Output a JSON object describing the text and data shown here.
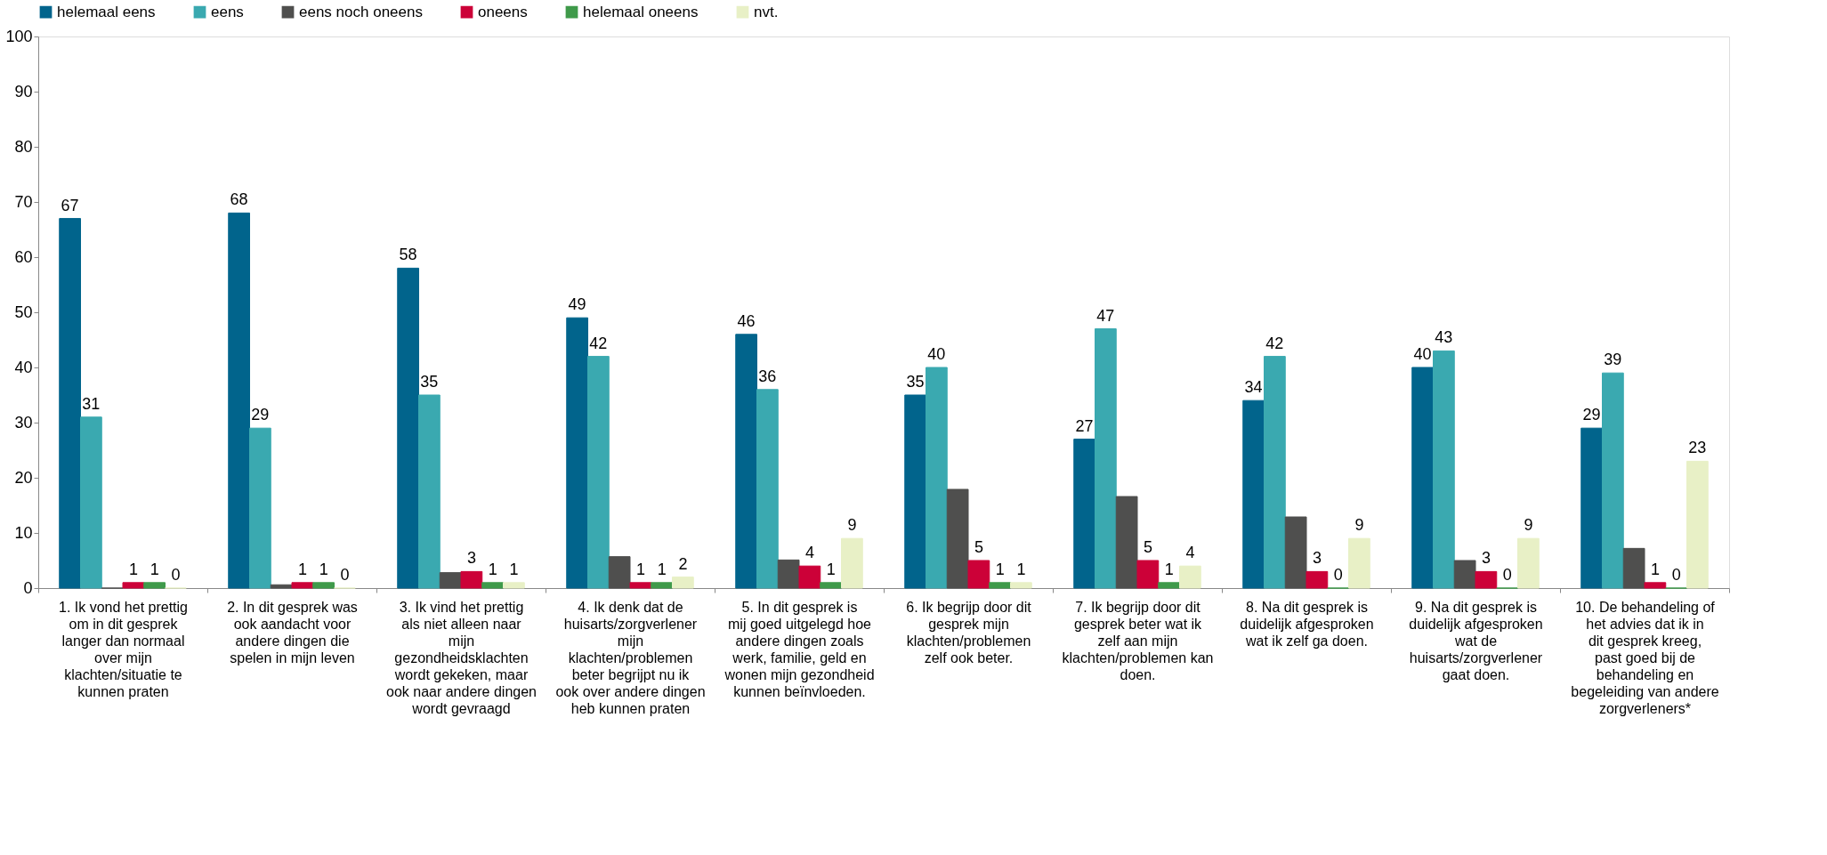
{
  "chart_data": {
    "type": "bar",
    "categories": [
      "1. Ik vond het prettig om in dit gesprek langer dan normaal over mijn klachten/situatie te kunnen praten",
      "2. In dit gesprek was ook aandacht voor andere dingen die spelen in mijn leven",
      "3. Ik vind het prettig als niet alleen naar mijn gezondheidsklachten wordt gekeken, maar ook naar andere dingen wordt gevraagd",
      "4. Ik denk dat de huisarts/zorgverlener mijn klachten/problemen beter begrijpt nu ik ook over andere dingen heb kunnen praten",
      "5. In dit gesprek is mij goed uitgelegd hoe andere dingen zoals werk, familie, geld en wonen mijn gezondheid kunnen beïnvloeden.",
      "6. Ik begrijp door dit gesprek mijn klachten/problemen zelf ook beter.",
      "7. Ik begrijp door dit gesprek beter wat ik zelf aan mijn klachten/problemen kan doen.",
      "8. Na dit gesprek is duidelijk afgesproken wat ik zelf ga doen.",
      "9. Na dit gesprek is duidelijk afgesproken wat de huisarts/zorgverlener gaat doen.",
      "10. De behandeling of het advies dat ik in dit gesprek kreeg, past goed bij de behandeling en begeleiding van andere zorgverleners*"
    ],
    "series": [
      {
        "name": "helemaal eens",
        "color": "#01648c",
        "values": [
          67,
          68,
          58,
          49,
          46,
          35,
          27,
          34,
          40,
          29
        ],
        "value_labels": [
          "67",
          "68",
          "58",
          "49",
          "46",
          "35",
          "27",
          "34",
          "40",
          "29"
        ]
      },
      {
        "name": "eens",
        "color": "#3aa9b0",
        "values": [
          31,
          29,
          35,
          42,
          36,
          40,
          47,
          42,
          43,
          39
        ],
        "value_labels": [
          "31",
          "29",
          "35",
          "42",
          "36",
          "40",
          "47",
          "42",
          "43",
          "39"
        ]
      },
      {
        "name": "eens noch oneens",
        "color": "#4f4f4e",
        "values": [
          0,
          0.6,
          2.8,
          5.7,
          5.1,
          17.9,
          16.6,
          12.9,
          5.0,
          7.2
        ],
        "value_labels": [
          null,
          null,
          null,
          null,
          null,
          null,
          null,
          null,
          null,
          null
        ]
      },
      {
        "name": "oneens",
        "color": "#cc0138",
        "values": [
          1,
          1,
          3,
          1,
          4,
          5,
          5,
          3,
          3,
          1
        ],
        "value_labels": [
          "1",
          "1",
          "3",
          "1",
          "4",
          "5",
          "5",
          "3",
          "3",
          "1"
        ]
      },
      {
        "name": "helemaal oneens",
        "color": "#3f9a4a",
        "values": [
          1,
          1,
          1,
          1,
          1,
          1,
          1,
          0,
          0,
          0
        ],
        "value_labels": [
          "1",
          "1",
          "1",
          "1",
          "1",
          "1",
          "1",
          "0",
          "0",
          "0"
        ]
      },
      {
        "name": "nvt.",
        "color": "#e8f0c6",
        "values": [
          0,
          0,
          1,
          2,
          9,
          1,
          4,
          9,
          9,
          23
        ],
        "value_labels": [
          "0",
          "0",
          "1",
          "2",
          "9",
          "1",
          "4",
          "9",
          "9",
          "23"
        ]
      }
    ],
    "ylim": [
      0,
      100
    ],
    "yticks": [
      0,
      10,
      20,
      30,
      40,
      50,
      60,
      70,
      80,
      90,
      100
    ],
    "grid": false,
    "legend": "top"
  }
}
